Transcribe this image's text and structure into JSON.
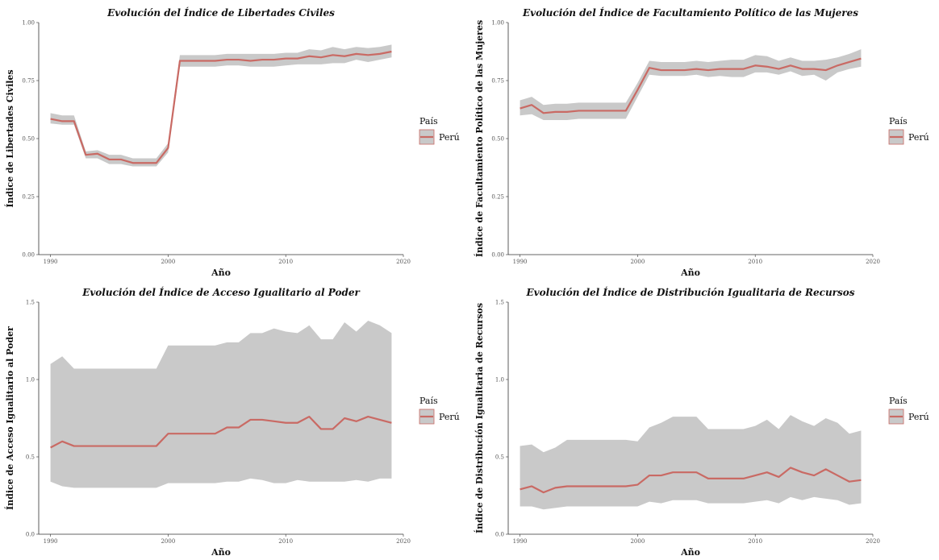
{
  "colors": {
    "line": "#c96a64",
    "band": "#c9c9c9",
    "axis": "#333333"
  },
  "chart_data": [
    {
      "type": "line",
      "title": "Evolución del Índice de Libertades Civiles",
      "xlabel": "Año",
      "ylabel": "Índice de Libertades Civiles",
      "xlim": [
        1989,
        2020
      ],
      "ylim": [
        0,
        1.0
      ],
      "x_ticks": [
        1990,
        2000,
        2010,
        2020
      ],
      "y_ticks": [
        0.0,
        0.25,
        0.5,
        0.75,
        1.0
      ],
      "y_tick_labels": [
        "0.00",
        "0.25",
        "0.50",
        "0.75",
        "1.00"
      ],
      "legend": {
        "title": "País",
        "placement": "right"
      },
      "series": [
        {
          "name": "Perú",
          "x": [
            1990,
            1991,
            1992,
            1993,
            1994,
            1995,
            1996,
            1997,
            1998,
            1999,
            2000,
            2001,
            2002,
            2003,
            2004,
            2005,
            2006,
            2007,
            2008,
            2009,
            2010,
            2011,
            2012,
            2013,
            2014,
            2015,
            2016,
            2017,
            2018,
            2019
          ],
          "values": [
            0.585,
            0.575,
            0.575,
            0.43,
            0.435,
            0.41,
            0.41,
            0.395,
            0.395,
            0.395,
            0.46,
            0.835,
            0.835,
            0.835,
            0.835,
            0.84,
            0.84,
            0.835,
            0.84,
            0.84,
            0.845,
            0.845,
            0.855,
            0.85,
            0.86,
            0.855,
            0.865,
            0.86,
            0.865,
            0.875
          ],
          "lower": [
            0.565,
            0.56,
            0.56,
            0.415,
            0.415,
            0.39,
            0.39,
            0.38,
            0.38,
            0.38,
            0.44,
            0.81,
            0.81,
            0.81,
            0.81,
            0.815,
            0.815,
            0.81,
            0.81,
            0.81,
            0.815,
            0.82,
            0.82,
            0.82,
            0.825,
            0.825,
            0.84,
            0.83,
            0.84,
            0.85
          ],
          "upper": [
            0.61,
            0.6,
            0.6,
            0.445,
            0.45,
            0.43,
            0.43,
            0.415,
            0.415,
            0.415,
            0.48,
            0.86,
            0.86,
            0.86,
            0.86,
            0.865,
            0.865,
            0.865,
            0.865,
            0.865,
            0.87,
            0.87,
            0.885,
            0.88,
            0.895,
            0.885,
            0.895,
            0.89,
            0.895,
            0.905
          ]
        }
      ]
    },
    {
      "type": "line",
      "title": "Evolución del Índice de Facultamiento Político de las Mujeres",
      "xlabel": "Año",
      "ylabel": "Índice de Facultamiento Político de las Mujeres",
      "xlim": [
        1989,
        2020
      ],
      "ylim": [
        0,
        1.0
      ],
      "x_ticks": [
        1990,
        2000,
        2010,
        2020
      ],
      "y_ticks": [
        0.0,
        0.25,
        0.5,
        0.75,
        1.0
      ],
      "y_tick_labels": [
        "0.00",
        "0.25",
        "0.50",
        "0.75",
        "1.00"
      ],
      "legend": {
        "title": "País",
        "placement": "right"
      },
      "series": [
        {
          "name": "Perú",
          "x": [
            1990,
            1991,
            1992,
            1993,
            1994,
            1995,
            1996,
            1997,
            1998,
            1999,
            2000,
            2001,
            2002,
            2003,
            2004,
            2005,
            2006,
            2007,
            2008,
            2009,
            2010,
            2011,
            2012,
            2013,
            2014,
            2015,
            2016,
            2017,
            2018,
            2019
          ],
          "values": [
            0.63,
            0.645,
            0.61,
            0.615,
            0.615,
            0.62,
            0.62,
            0.62,
            0.62,
            0.62,
            0.71,
            0.805,
            0.795,
            0.795,
            0.795,
            0.8,
            0.795,
            0.8,
            0.8,
            0.8,
            0.815,
            0.81,
            0.8,
            0.815,
            0.8,
            0.8,
            0.795,
            0.815,
            0.83,
            0.845
          ],
          "lower": [
            0.6,
            0.605,
            0.58,
            0.58,
            0.58,
            0.585,
            0.585,
            0.585,
            0.585,
            0.585,
            0.68,
            0.775,
            0.77,
            0.77,
            0.77,
            0.775,
            0.765,
            0.77,
            0.765,
            0.765,
            0.785,
            0.785,
            0.775,
            0.79,
            0.77,
            0.775,
            0.75,
            0.785,
            0.8,
            0.81
          ],
          "upper": [
            0.665,
            0.68,
            0.645,
            0.65,
            0.65,
            0.655,
            0.655,
            0.655,
            0.655,
            0.655,
            0.74,
            0.835,
            0.83,
            0.83,
            0.83,
            0.835,
            0.83,
            0.835,
            0.84,
            0.84,
            0.86,
            0.855,
            0.835,
            0.85,
            0.835,
            0.835,
            0.84,
            0.85,
            0.865,
            0.885
          ]
        }
      ]
    },
    {
      "type": "line",
      "title": "Evolución del Índice de Acceso Igualitario al Poder",
      "xlabel": "Año",
      "ylabel": "Índice de Acceso Igualitario al Poder",
      "xlim": [
        1989,
        2020
      ],
      "ylim": [
        0,
        1.5
      ],
      "x_ticks": [
        1990,
        2000,
        2010,
        2020
      ],
      "y_ticks": [
        0.0,
        0.5,
        1.0,
        1.5
      ],
      "y_tick_labels": [
        "0.0",
        "0.5",
        "1.0",
        "1.5"
      ],
      "legend": {
        "title": "País",
        "placement": "right"
      },
      "series": [
        {
          "name": "Perú",
          "x": [
            1990,
            1991,
            1992,
            1993,
            1994,
            1995,
            1996,
            1997,
            1998,
            1999,
            2000,
            2001,
            2002,
            2003,
            2004,
            2005,
            2006,
            2007,
            2008,
            2009,
            2010,
            2011,
            2012,
            2013,
            2014,
            2015,
            2016,
            2017,
            2018,
            2019
          ],
          "values": [
            0.56,
            0.6,
            0.57,
            0.57,
            0.57,
            0.57,
            0.57,
            0.57,
            0.57,
            0.57,
            0.65,
            0.65,
            0.65,
            0.65,
            0.65,
            0.69,
            0.69,
            0.74,
            0.74,
            0.73,
            0.72,
            0.72,
            0.76,
            0.68,
            0.68,
            0.75,
            0.73,
            0.76,
            0.74,
            0.72
          ],
          "lower": [
            0.34,
            0.31,
            0.3,
            0.3,
            0.3,
            0.3,
            0.3,
            0.3,
            0.3,
            0.3,
            0.33,
            0.33,
            0.33,
            0.33,
            0.33,
            0.34,
            0.34,
            0.36,
            0.35,
            0.33,
            0.33,
            0.35,
            0.34,
            0.34,
            0.34,
            0.34,
            0.35,
            0.34,
            0.36,
            0.36
          ],
          "upper": [
            1.1,
            1.15,
            1.07,
            1.07,
            1.07,
            1.07,
            1.07,
            1.07,
            1.07,
            1.07,
            1.22,
            1.22,
            1.22,
            1.22,
            1.22,
            1.24,
            1.24,
            1.3,
            1.3,
            1.33,
            1.31,
            1.3,
            1.35,
            1.26,
            1.26,
            1.37,
            1.31,
            1.38,
            1.35,
            1.3
          ]
        }
      ]
    },
    {
      "type": "line",
      "title": "Evolución del Índice de Distribución Igualitaria de Recursos",
      "xlabel": "Año",
      "ylabel": "Índice de Distribución Igualitaria de Recursos",
      "xlim": [
        1989,
        2020
      ],
      "ylim": [
        0,
        1.5
      ],
      "x_ticks": [
        1990,
        2000,
        2010,
        2020
      ],
      "y_ticks": [
        0.0,
        0.5,
        1.0,
        1.5
      ],
      "y_tick_labels": [
        "0.0",
        "0.5",
        "1.0",
        "1.5"
      ],
      "legend": {
        "title": "País",
        "placement": "right"
      },
      "series": [
        {
          "name": "Perú",
          "x": [
            1990,
            1991,
            1992,
            1993,
            1994,
            1995,
            1996,
            1997,
            1998,
            1999,
            2000,
            2001,
            2002,
            2003,
            2004,
            2005,
            2006,
            2007,
            2008,
            2009,
            2010,
            2011,
            2012,
            2013,
            2014,
            2015,
            2016,
            2017,
            2018,
            2019
          ],
          "values": [
            0.29,
            0.31,
            0.27,
            0.3,
            0.31,
            0.31,
            0.31,
            0.31,
            0.31,
            0.31,
            0.32,
            0.38,
            0.38,
            0.4,
            0.4,
            0.4,
            0.36,
            0.36,
            0.36,
            0.36,
            0.38,
            0.4,
            0.37,
            0.43,
            0.4,
            0.38,
            0.42,
            0.38,
            0.34,
            0.35
          ],
          "lower": [
            0.18,
            0.18,
            0.16,
            0.17,
            0.18,
            0.18,
            0.18,
            0.18,
            0.18,
            0.18,
            0.18,
            0.21,
            0.2,
            0.22,
            0.22,
            0.22,
            0.2,
            0.2,
            0.2,
            0.2,
            0.21,
            0.22,
            0.2,
            0.24,
            0.22,
            0.24,
            0.23,
            0.22,
            0.19,
            0.2
          ],
          "upper": [
            0.57,
            0.58,
            0.53,
            0.56,
            0.61,
            0.61,
            0.61,
            0.61,
            0.61,
            0.61,
            0.6,
            0.69,
            0.72,
            0.76,
            0.76,
            0.76,
            0.68,
            0.68,
            0.68,
            0.68,
            0.7,
            0.74,
            0.68,
            0.77,
            0.73,
            0.7,
            0.75,
            0.72,
            0.65,
            0.67
          ]
        }
      ]
    }
  ]
}
